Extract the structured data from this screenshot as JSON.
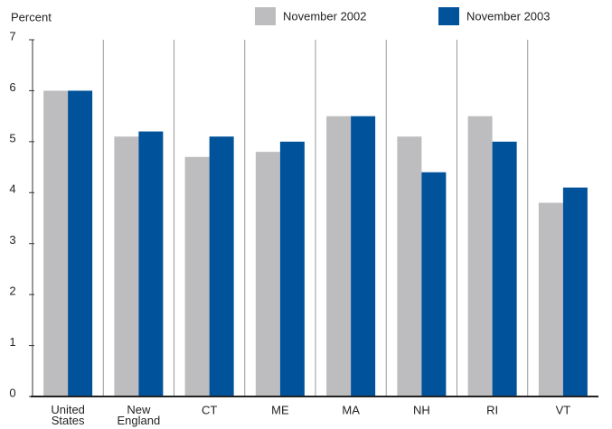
{
  "chart_data": {
    "type": "bar",
    "y_label": "Percent",
    "categories": [
      "United States",
      "New England",
      "CT",
      "ME",
      "MA",
      "NH",
      "RI",
      "VT"
    ],
    "series": [
      {
        "name": "November 2002",
        "color": "#bdbdbf",
        "values": [
          6.0,
          5.1,
          4.7,
          4.8,
          5.5,
          5.1,
          5.5,
          3.8
        ]
      },
      {
        "name": "November 2003",
        "color": "#00529b",
        "values": [
          6.0,
          5.2,
          5.1,
          5.0,
          5.5,
          4.4,
          5.0,
          4.1
        ]
      }
    ],
    "ylim": [
      0,
      7
    ],
    "yticks": [
      0,
      1,
      2,
      3,
      4,
      5,
      6,
      7
    ],
    "separators": true
  }
}
